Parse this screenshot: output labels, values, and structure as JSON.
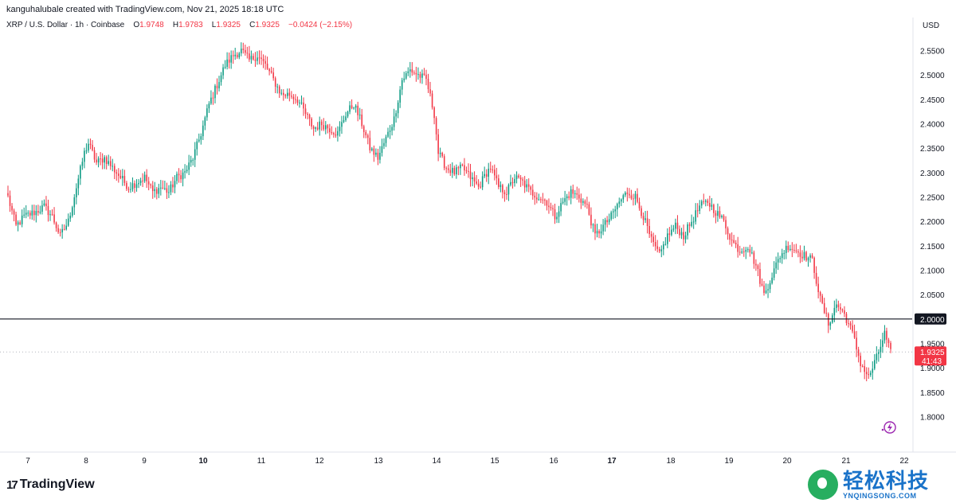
{
  "header": {
    "attribution": "kanguhalubale created with TradingView.com, Nov 21, 2025 18:18 UTC"
  },
  "legend": {
    "symbol": "XRP / U.S. Dollar · 1h · Coinbase",
    "o_label": "O",
    "o_value": "1.9748",
    "h_label": "H",
    "h_value": "1.9783",
    "l_label": "L",
    "l_value": "1.9325",
    "c_label": "C",
    "c_value": "1.9325",
    "change": "−0.0424 (−2.15%)"
  },
  "currency": "USD",
  "footer": {
    "brand": "TradingView"
  },
  "watermark": {
    "title": "轻松科技",
    "subtitle": "YNQINGSONG.COM"
  },
  "colors": {
    "up": "#089981",
    "down": "#f23645",
    "line": "#131722"
  },
  "chart_data": {
    "type": "candlestick",
    "interval": "1h",
    "ylim": [
      1.76,
      2.585
    ],
    "y_ticks": [
      "2.5500",
      "2.5000",
      "2.4500",
      "2.4000",
      "2.3500",
      "2.3000",
      "2.2500",
      "2.2000",
      "2.1500",
      "2.1000",
      "2.0500",
      "1.9500",
      "1.9000",
      "1.8500",
      "1.8000"
    ],
    "x_ticks": [
      "7",
      "8",
      "9",
      "10",
      "11",
      "12",
      "13",
      "14",
      "15",
      "16",
      "17",
      "18",
      "19",
      "20",
      "21",
      "22"
    ],
    "bold_x_ticks": [
      "10",
      "17"
    ],
    "horizontal_line": {
      "value": 2.0,
      "label": "2.0000"
    },
    "last_price": {
      "value": 1.9325,
      "label": "1.9325",
      "countdown": "41:43"
    },
    "close_path": [
      [
        0,
        2.25
      ],
      [
        4,
        2.19
      ],
      [
        8,
        2.21
      ],
      [
        14,
        2.22
      ],
      [
        18,
        2.23
      ],
      [
        22,
        2.21
      ],
      [
        26,
        2.17
      ],
      [
        30,
        2.2
      ],
      [
        34,
        2.27
      ],
      [
        38,
        2.34
      ],
      [
        40,
        2.36
      ],
      [
        44,
        2.32
      ],
      [
        48,
        2.33
      ],
      [
        52,
        2.31
      ],
      [
        56,
        2.29
      ],
      [
        60,
        2.27
      ],
      [
        64,
        2.28
      ],
      [
        68,
        2.29
      ],
      [
        72,
        2.26
      ],
      [
        76,
        2.27
      ],
      [
        80,
        2.26
      ],
      [
        84,
        2.29
      ],
      [
        88,
        2.3
      ],
      [
        92,
        2.33
      ],
      [
        96,
        2.38
      ],
      [
        100,
        2.44
      ],
      [
        104,
        2.48
      ],
      [
        108,
        2.52
      ],
      [
        112,
        2.54
      ],
      [
        116,
        2.55
      ],
      [
        120,
        2.53
      ],
      [
        124,
        2.54
      ],
      [
        128,
        2.52
      ],
      [
        132,
        2.49
      ],
      [
        136,
        2.46
      ],
      [
        140,
        2.46
      ],
      [
        144,
        2.45
      ],
      [
        148,
        2.42
      ],
      [
        152,
        2.39
      ],
      [
        156,
        2.4
      ],
      [
        160,
        2.39
      ],
      [
        164,
        2.38
      ],
      [
        168,
        2.42
      ],
      [
        172,
        2.44
      ],
      [
        176,
        2.4
      ],
      [
        180,
        2.35
      ],
      [
        184,
        2.33
      ],
      [
        188,
        2.37
      ],
      [
        192,
        2.41
      ],
      [
        196,
        2.49
      ],
      [
        200,
        2.51
      ],
      [
        204,
        2.5
      ],
      [
        208,
        2.49
      ],
      [
        212,
        2.42
      ],
      [
        214,
        2.34
      ],
      [
        218,
        2.31
      ],
      [
        222,
        2.3
      ],
      [
        226,
        2.31
      ],
      [
        230,
        2.29
      ],
      [
        234,
        2.27
      ],
      [
        238,
        2.3
      ],
      [
        240,
        2.31
      ],
      [
        244,
        2.27
      ],
      [
        248,
        2.26
      ],
      [
        252,
        2.29
      ],
      [
        256,
        2.28
      ],
      [
        260,
        2.26
      ],
      [
        264,
        2.25
      ],
      [
        268,
        2.24
      ],
      [
        272,
        2.21
      ],
      [
        276,
        2.24
      ],
      [
        280,
        2.26
      ],
      [
        284,
        2.25
      ],
      [
        288,
        2.23
      ],
      [
        292,
        2.17
      ],
      [
        296,
        2.19
      ],
      [
        300,
        2.21
      ],
      [
        304,
        2.24
      ],
      [
        308,
        2.26
      ],
      [
        312,
        2.25
      ],
      [
        316,
        2.21
      ],
      [
        320,
        2.16
      ],
      [
        324,
        2.13
      ],
      [
        328,
        2.17
      ],
      [
        332,
        2.19
      ],
      [
        336,
        2.17
      ],
      [
        340,
        2.2
      ],
      [
        344,
        2.23
      ],
      [
        348,
        2.24
      ],
      [
        352,
        2.22
      ],
      [
        356,
        2.2
      ],
      [
        360,
        2.16
      ],
      [
        364,
        2.14
      ],
      [
        368,
        2.15
      ],
      [
        372,
        2.11
      ],
      [
        376,
        2.05
      ],
      [
        380,
        2.09
      ],
      [
        384,
        2.13
      ],
      [
        388,
        2.15
      ],
      [
        392,
        2.14
      ],
      [
        396,
        2.13
      ],
      [
        400,
        2.12
      ],
      [
        404,
        2.04
      ],
      [
        408,
        1.99
      ],
      [
        412,
        2.03
      ],
      [
        416,
        2.01
      ],
      [
        420,
        1.97
      ],
      [
        424,
        1.91
      ],
      [
        428,
        1.88
      ],
      [
        432,
        1.92
      ],
      [
        436,
        1.97
      ],
      [
        439,
        1.93
      ]
    ]
  }
}
